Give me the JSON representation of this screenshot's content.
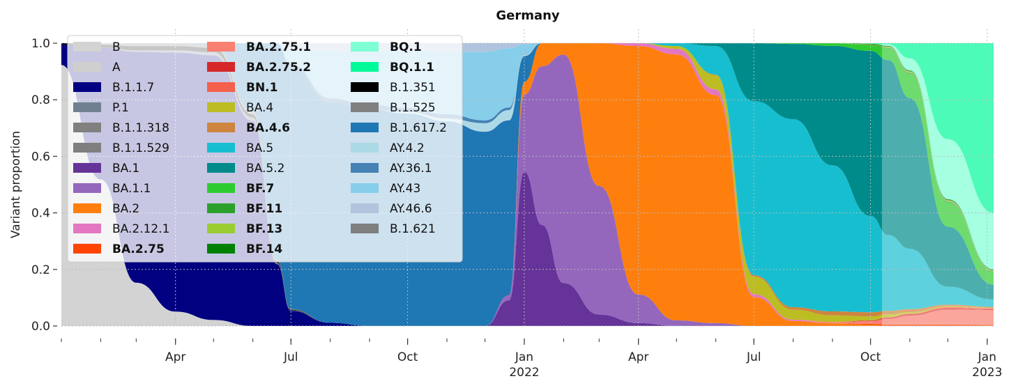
{
  "chart_data": {
    "type": "area",
    "stacked": true,
    "normalized": true,
    "title": "Germany",
    "xlabel": "",
    "ylabel": "Variant proportion",
    "ylim": [
      0,
      1
    ],
    "xlim": [
      "2021-01-01",
      "2023-01-06"
    ],
    "yticks": [
      "0.0",
      "0.2",
      "0.4",
      "0.6",
      "0.8",
      "1.0"
    ],
    "xticks": [
      {
        "date": "2021-04-01",
        "label": "Apr",
        "sub": ""
      },
      {
        "date": "2021-07-01",
        "label": "Jul",
        "sub": ""
      },
      {
        "date": "2021-10-01",
        "label": "Oct",
        "sub": ""
      },
      {
        "date": "2022-01-01",
        "label": "Jan",
        "sub": "2022"
      },
      {
        "date": "2022-04-01",
        "label": "Apr",
        "sub": ""
      },
      {
        "date": "2022-07-01",
        "label": "Jul",
        "sub": ""
      },
      {
        "date": "2022-10-01",
        "label": "Oct",
        "sub": ""
      },
      {
        "date": "2023-01-01",
        "label": "Jan",
        "sub": "2023"
      }
    ],
    "grid": true,
    "legend_position": "top-left",
    "forecast_start": "2022-10-10",
    "x": [
      "2021-01-01",
      "2021-02-01",
      "2021-03-01",
      "2021-04-01",
      "2021-05-01",
      "2021-06-01",
      "2021-06-20",
      "2021-07-01",
      "2021-08-01",
      "2021-09-01",
      "2021-10-01",
      "2021-11-01",
      "2021-12-01",
      "2021-12-20",
      "2022-01-01",
      "2022-01-15",
      "2022-02-01",
      "2022-03-01",
      "2022-04-01",
      "2022-05-01",
      "2022-06-01",
      "2022-07-01",
      "2022-08-01",
      "2022-09-01",
      "2022-10-01",
      "2022-10-15",
      "2022-11-01",
      "2022-12-01",
      "2023-01-06"
    ],
    "series": [
      {
        "name": "B",
        "bold": false,
        "color": "#d3d3d3",
        "values": [
          0.9,
          0.5,
          0.15,
          0.05,
          0.02,
          0,
          0,
          0,
          0,
          0,
          0,
          0,
          0,
          0,
          0,
          0,
          0,
          0,
          0,
          0,
          0,
          0,
          0,
          0,
          0,
          0,
          0,
          0,
          0
        ]
      },
      {
        "name": "A",
        "bold": false,
        "color": "#cfcfcf",
        "values": [
          0,
          0,
          0,
          0,
          0,
          0,
          0,
          0,
          0,
          0,
          0,
          0,
          0,
          0,
          0,
          0,
          0,
          0,
          0,
          0,
          0,
          0,
          0,
          0,
          0,
          0,
          0,
          0,
          0
        ]
      },
      {
        "name": "B.1.1.7",
        "bold": false,
        "color": "#000080",
        "values": [
          0.07,
          0.45,
          0.8,
          0.9,
          0.88,
          0.6,
          0.2,
          0.05,
          0.01,
          0,
          0,
          0,
          0,
          0,
          0,
          0,
          0,
          0,
          0,
          0,
          0,
          0,
          0,
          0,
          0,
          0,
          0,
          0,
          0
        ]
      },
      {
        "name": "P.1",
        "bold": false,
        "color": "#708090",
        "values": [
          0,
          0,
          0.005,
          0.008,
          0.01,
          0.01,
          0.005,
          0.002,
          0,
          0,
          0,
          0,
          0,
          0,
          0,
          0,
          0,
          0,
          0,
          0,
          0,
          0,
          0,
          0,
          0,
          0,
          0,
          0,
          0
        ]
      },
      {
        "name": "B.1.1.318",
        "bold": false,
        "color": "#808080",
        "values": [
          0,
          0,
          0,
          0,
          0,
          0,
          0,
          0,
          0,
          0,
          0,
          0,
          0,
          0,
          0,
          0,
          0,
          0,
          0,
          0,
          0,
          0,
          0,
          0,
          0,
          0,
          0,
          0,
          0
        ]
      },
      {
        "name": "B.1.1.529",
        "bold": false,
        "color": "#7f7f7f",
        "values": [
          0,
          0,
          0,
          0,
          0,
          0,
          0,
          0,
          0,
          0,
          0,
          0,
          0,
          0,
          0,
          0,
          0,
          0,
          0,
          0,
          0,
          0,
          0,
          0,
          0,
          0,
          0,
          0,
          0
        ]
      },
      {
        "name": "BA.1",
        "bold": false,
        "color": "#663399",
        "values": [
          0,
          0,
          0,
          0,
          0,
          0,
          0,
          0,
          0,
          0,
          0,
          0,
          0,
          0.1,
          0.6,
          0.35,
          0.15,
          0.04,
          0.01,
          0,
          0,
          0,
          0,
          0,
          0,
          0,
          0,
          0,
          0
        ]
      },
      {
        "name": "BA.1.1",
        "bold": false,
        "color": "#9467bd",
        "values": [
          0,
          0,
          0,
          0,
          0,
          0,
          0,
          0,
          0,
          0,
          0,
          0,
          0,
          0.02,
          0.3,
          0.55,
          0.8,
          0.45,
          0.1,
          0.02,
          0.01,
          0,
          0,
          0,
          0,
          0,
          0,
          0,
          0
        ]
      },
      {
        "name": "BA.2",
        "bold": false,
        "color": "#ff7f0e",
        "values": [
          0,
          0,
          0,
          0,
          0,
          0,
          0,
          0,
          0,
          0,
          0,
          0,
          0,
          0,
          0.05,
          0.08,
          0.04,
          0.5,
          0.87,
          0.95,
          0.8,
          0.1,
          0.02,
          0.01,
          0.005,
          0,
          0,
          0,
          0
        ]
      },
      {
        "name": "BA.2.12.1",
        "bold": false,
        "color": "#e377c2",
        "values": [
          0,
          0,
          0,
          0,
          0,
          0,
          0,
          0,
          0,
          0,
          0,
          0,
          0,
          0,
          0,
          0,
          0,
          0,
          0.01,
          0.02,
          0.02,
          0.01,
          0.005,
          0,
          0,
          0,
          0,
          0,
          0
        ]
      },
      {
        "name": "BA.2.75",
        "bold": true,
        "color": "#ff4500",
        "values": [
          0,
          0,
          0,
          0,
          0,
          0,
          0,
          0,
          0,
          0,
          0,
          0,
          0,
          0,
          0,
          0,
          0,
          0,
          0,
          0,
          0,
          0,
          0,
          0,
          0.003,
          0.005,
          0.005,
          0.005,
          0.005
        ]
      },
      {
        "name": "BA.2.75.1",
        "bold": true,
        "color": "#fa8072",
        "values": [
          0,
          0,
          0,
          0,
          0,
          0,
          0,
          0,
          0,
          0,
          0,
          0,
          0,
          0,
          0,
          0,
          0,
          0,
          0,
          0,
          0,
          0,
          0,
          0.005,
          0.01,
          0.02,
          0.03,
          0.05,
          0.06
        ]
      },
      {
        "name": "BA.2.75.2",
        "bold": true,
        "color": "#d62728",
        "values": [
          0,
          0,
          0,
          0,
          0,
          0,
          0,
          0,
          0,
          0,
          0,
          0,
          0,
          0,
          0,
          0,
          0,
          0,
          0,
          0,
          0,
          0,
          0,
          0,
          0.002,
          0.003,
          0.003,
          0.003,
          0.003
        ]
      },
      {
        "name": "BN.1",
        "bold": true,
        "color": "#f4604b",
        "values": [
          0,
          0,
          0,
          0,
          0,
          0,
          0,
          0,
          0,
          0,
          0,
          0,
          0,
          0,
          0,
          0,
          0,
          0,
          0,
          0,
          0,
          0,
          0,
          0,
          0,
          0.002,
          0.003,
          0.005,
          0.005
        ]
      },
      {
        "name": "BA.4",
        "bold": false,
        "color": "#bcbd22",
        "values": [
          0,
          0,
          0,
          0,
          0,
          0,
          0,
          0,
          0,
          0,
          0,
          0,
          0,
          0,
          0,
          0,
          0,
          0,
          0,
          0.01,
          0.05,
          0.06,
          0.04,
          0.025,
          0.015,
          0.01,
          0.005,
          0.003,
          0.002
        ]
      },
      {
        "name": "BA.4.6",
        "bold": true,
        "color": "#cd853f",
        "values": [
          0,
          0,
          0,
          0,
          0,
          0,
          0,
          0,
          0,
          0,
          0,
          0,
          0,
          0,
          0,
          0,
          0,
          0,
          0,
          0,
          0.002,
          0.005,
          0.01,
          0.015,
          0.015,
          0.012,
          0.01,
          0.005,
          0.003
        ]
      },
      {
        "name": "BA.5",
        "bold": false,
        "color": "#17becf",
        "values": [
          0,
          0,
          0,
          0,
          0,
          0,
          0,
          0,
          0,
          0,
          0,
          0,
          0,
          0,
          0,
          0,
          0,
          0,
          0,
          0.01,
          0.1,
          0.6,
          0.75,
          0.55,
          0.35,
          0.26,
          0.2,
          0.06,
          0.03
        ]
      },
      {
        "name": "BA.5.2",
        "bold": false,
        "color": "#008b8b",
        "values": [
          0,
          0,
          0,
          0,
          0,
          0,
          0,
          0,
          0,
          0,
          0,
          0,
          0,
          0,
          0,
          0,
          0,
          0,
          0,
          0,
          0.01,
          0.2,
          0.3,
          0.45,
          0.6,
          0.6,
          0.5,
          0.2,
          0.06
        ]
      },
      {
        "name": "BF.7",
        "bold": true,
        "color": "#2ecc30",
        "values": [
          0,
          0,
          0,
          0,
          0,
          0,
          0,
          0,
          0,
          0,
          0,
          0,
          0,
          0,
          0,
          0,
          0,
          0,
          0,
          0,
          0,
          0,
          0.003,
          0.01,
          0.02,
          0.04,
          0.08,
          0.08,
          0.05
        ]
      },
      {
        "name": "BF.11",
        "bold": true,
        "color": "#2ca02c",
        "values": [
          0,
          0,
          0,
          0,
          0,
          0,
          0,
          0,
          0,
          0,
          0,
          0,
          0,
          0,
          0,
          0,
          0,
          0,
          0,
          0,
          0,
          0,
          0,
          0,
          0.002,
          0.003,
          0.004,
          0.004,
          0.004
        ]
      },
      {
        "name": "BF.13",
        "bold": true,
        "color": "#9acd32",
        "values": [
          0,
          0,
          0,
          0,
          0,
          0,
          0,
          0,
          0,
          0,
          0,
          0,
          0,
          0,
          0,
          0,
          0,
          0,
          0,
          0,
          0,
          0,
          0,
          0,
          0.002,
          0.003,
          0.004,
          0.004,
          0.004
        ]
      },
      {
        "name": "BF.14",
        "bold": true,
        "color": "#008000",
        "values": [
          0,
          0,
          0,
          0,
          0,
          0,
          0,
          0,
          0,
          0,
          0,
          0,
          0,
          0,
          0,
          0,
          0,
          0,
          0,
          0,
          0,
          0,
          0,
          0,
          0.002,
          0.003,
          0.004,
          0.004,
          0.004
        ]
      },
      {
        "name": "BQ.1",
        "bold": true,
        "color": "#7fffd4",
        "values": [
          0,
          0,
          0,
          0,
          0,
          0,
          0,
          0,
          0,
          0,
          0,
          0,
          0,
          0,
          0,
          0,
          0,
          0,
          0,
          0,
          0,
          0,
          0,
          0,
          0.001,
          0.005,
          0.04,
          0.2,
          0.23
        ]
      },
      {
        "name": "BQ.1.1",
        "bold": true,
        "color": "#00fa9a",
        "values": [
          0,
          0,
          0,
          0,
          0,
          0,
          0,
          0,
          0,
          0,
          0,
          0,
          0,
          0,
          0,
          0,
          0,
          0,
          0,
          0,
          0,
          0,
          0,
          0,
          0.001,
          0.004,
          0.05,
          0.32,
          0.69
        ]
      },
      {
        "name": "B.1.351",
        "bold": false,
        "color": "#000000",
        "values": [
          0.005,
          0.01,
          0.015,
          0.015,
          0.015,
          0.01,
          0.005,
          0.002,
          0,
          0,
          0,
          0,
          0,
          0,
          0,
          0,
          0,
          0,
          0,
          0,
          0,
          0,
          0,
          0,
          0,
          0,
          0,
          0,
          0
        ]
      },
      {
        "name": "B.1.525",
        "bold": false,
        "color": "#808080",
        "values": [
          0,
          0.005,
          0.01,
          0.01,
          0.01,
          0.008,
          0.005,
          0.002,
          0,
          0,
          0,
          0,
          0,
          0,
          0,
          0,
          0,
          0,
          0,
          0,
          0,
          0,
          0,
          0,
          0,
          0,
          0,
          0,
          0
        ]
      },
      {
        "name": "B.1.617.2",
        "bold": false,
        "color": "#1f77b4",
        "values": [
          0,
          0,
          0,
          0,
          0.005,
          0.2,
          0.7,
          0.8,
          0.7,
          0.72,
          0.74,
          0.72,
          0.68,
          0.68,
          0.1,
          0,
          0,
          0,
          0,
          0,
          0,
          0,
          0,
          0,
          0,
          0,
          0,
          0,
          0
        ]
      },
      {
        "name": "AY.4.2",
        "bold": false,
        "color": "#add8e6",
        "values": [
          0,
          0,
          0,
          0,
          0,
          0,
          0,
          0,
          0,
          0,
          0.005,
          0.01,
          0.03,
          0.04,
          0.005,
          0,
          0,
          0,
          0,
          0,
          0,
          0,
          0,
          0,
          0,
          0,
          0,
          0,
          0
        ]
      },
      {
        "name": "AY.36.1",
        "bold": false,
        "color": "#4682b4",
        "values": [
          0,
          0,
          0,
          0,
          0,
          0,
          0,
          0.01,
          0.015,
          0.015,
          0.015,
          0.015,
          0.01,
          0.01,
          0.001,
          0,
          0,
          0,
          0,
          0,
          0,
          0,
          0,
          0,
          0,
          0,
          0,
          0,
          0
        ]
      },
      {
        "name": "AY.43",
        "bold": false,
        "color": "#87ceeb",
        "values": [
          0,
          0,
          0,
          0,
          0,
          0,
          0,
          0.05,
          0.15,
          0.18,
          0.2,
          0.22,
          0.24,
          0.23,
          0.04,
          0,
          0,
          0,
          0,
          0,
          0,
          0,
          0,
          0,
          0,
          0,
          0,
          0,
          0
        ]
      },
      {
        "name": "AY.46.6",
        "bold": false,
        "color": "#b0c4de",
        "values": [
          0,
          0,
          0,
          0,
          0,
          0,
          0,
          0.02,
          0.025,
          0.025,
          0.025,
          0.03,
          0.03,
          0.02,
          0.004,
          0,
          0,
          0,
          0,
          0,
          0,
          0,
          0,
          0,
          0,
          0,
          0,
          0,
          0
        ]
      },
      {
        "name": "B.1.621",
        "bold": false,
        "color": "#7f7f7f",
        "values": [
          0,
          0,
          0,
          0,
          0,
          0,
          0,
          0,
          0,
          0,
          0,
          0,
          0,
          0,
          0,
          0,
          0,
          0,
          0,
          0,
          0,
          0,
          0,
          0,
          0,
          0,
          0,
          0,
          0
        ]
      }
    ]
  }
}
